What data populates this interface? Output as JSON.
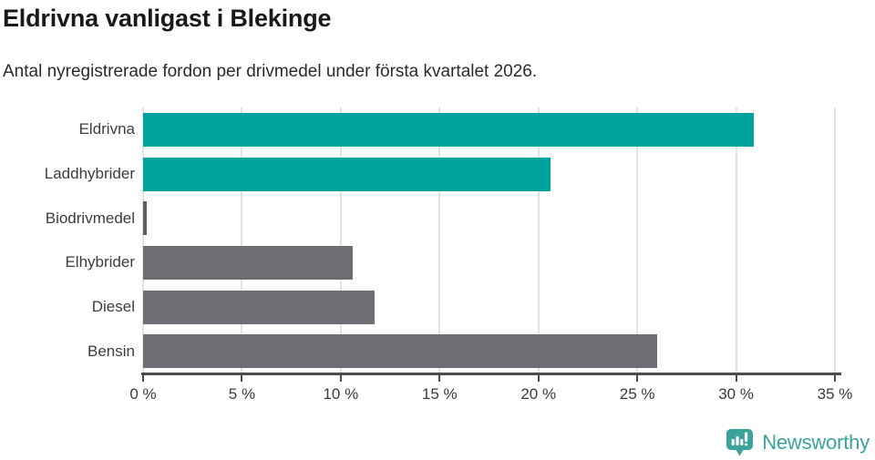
{
  "chart_data": {
    "type": "bar",
    "orientation": "horizontal",
    "title": "Eldrivna vanligast i Blekinge",
    "subtitle": "Antal nyregistrerade fordon per drivmedel under första kvartalet 2026.",
    "categories": [
      "Eldrivna",
      "Laddhybrider",
      "Biodrivmedel",
      "Elhybrider",
      "Diesel",
      "Bensin"
    ],
    "values": [
      30.9,
      20.6,
      0.2,
      10.6,
      11.7,
      26.0
    ],
    "unit": "%",
    "xlabel": "",
    "ylabel": "",
    "xlim": [
      0,
      35
    ],
    "x_ticks": [
      0,
      5,
      10,
      15,
      20,
      25,
      30,
      35
    ],
    "x_tick_labels": [
      "0 %",
      "5 %",
      "10 %",
      "15 %",
      "20 %",
      "25 %",
      "30 %",
      "35 %"
    ],
    "bar_colors": [
      "#00a39b",
      "#00a39b",
      "#5e5d64",
      "#6e6d74",
      "#6e6d74",
      "#6e6d74"
    ],
    "gridlines": "vertical",
    "legend": "none"
  },
  "colors": {
    "highlight": "#00a39b",
    "neutral": "#6e6d74",
    "gridline": "#e3e3e3",
    "axis": "#4c4c4c",
    "title_text": "#191919",
    "label_text": "#3d3d3d"
  },
  "branding": {
    "logo_text": "Newsworthy",
    "logo_color": "#3aa39c",
    "logo_icon_name": "newsworthy-speech-bubble-bar-chart-icon"
  }
}
